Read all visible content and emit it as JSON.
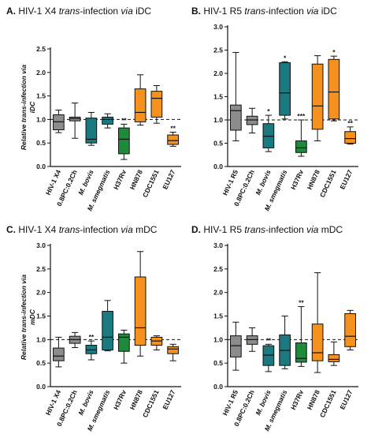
{
  "colors": {
    "gray": "#8c8c8c",
    "teal": "#1a7a80",
    "green": "#1e8a3c",
    "orange": "#f5911e",
    "axis": "#111111"
  },
  "chart_data": [
    {
      "type": "box",
      "panel": "A",
      "title_parts": [
        {
          "t": "A.",
          "s": "b"
        },
        {
          "t": " HIV-1 X4 ",
          "s": ""
        },
        {
          "t": "trans",
          "s": "i"
        },
        {
          "t": "-infection ",
          "s": ""
        },
        {
          "t": "via",
          "s": "i"
        },
        {
          "t": " iDC",
          "s": ""
        }
      ],
      "ylabel": [
        "Relative trans-infection via",
        "iDC"
      ],
      "ylim": [
        0,
        2.5
      ],
      "yticks": [
        "0.0",
        "0.5",
        "1.0",
        "1.5",
        "2.0",
        "2.5"
      ],
      "reference_line": 1.0,
      "categories": [
        "HIV-1 X4",
        "0.8PC:0.2Ch",
        "M. bovis",
        "M. smegmatis",
        "H37Rv",
        "HN878",
        "CDC1551",
        "EU127"
      ],
      "italic_categories": [
        false,
        false,
        true,
        true,
        false,
        false,
        false,
        false
      ],
      "colors": [
        "gray",
        "gray",
        "teal",
        "teal",
        "green",
        "orange",
        "orange",
        "orange"
      ],
      "boxes": [
        {
          "min": 0.72,
          "q1": 0.78,
          "median": 0.95,
          "q3": 1.1,
          "max": 1.2
        },
        {
          "min": 0.6,
          "q1": 0.97,
          "median": 1.02,
          "q3": 1.05,
          "max": 1.35
        },
        {
          "min": 0.45,
          "q1": 0.5,
          "median": 0.58,
          "q3": 1.03,
          "max": 1.15
        },
        {
          "min": 0.82,
          "q1": 0.9,
          "median": 1.0,
          "q3": 1.05,
          "max": 1.12
        },
        {
          "min": 0.15,
          "q1": 0.27,
          "median": 0.58,
          "q3": 0.82,
          "max": 0.9
        },
        {
          "min": 0.88,
          "q1": 0.95,
          "median": 1.15,
          "q3": 1.65,
          "max": 1.95
        },
        {
          "min": 0.92,
          "q1": 1.05,
          "median": 1.45,
          "q3": 1.6,
          "max": 1.72
        },
        {
          "min": 0.43,
          "q1": 0.47,
          "median": 0.55,
          "q3": 0.67,
          "max": 0.73
        }
      ],
      "significance": [
        "",
        "",
        "",
        "",
        "**",
        "",
        "",
        "**"
      ]
    },
    {
      "type": "box",
      "panel": "B",
      "title_parts": [
        {
          "t": "B.",
          "s": "b"
        },
        {
          "t": " HIV-1 R5 ",
          "s": ""
        },
        {
          "t": "trans",
          "s": "i"
        },
        {
          "t": "-infection ",
          "s": ""
        },
        {
          "t": "via",
          "s": "i"
        },
        {
          "t": " iDC",
          "s": ""
        }
      ],
      "ylabel": [],
      "ylim": [
        0,
        3.0
      ],
      "yticks": [
        "0.0",
        "0.5",
        "1.0",
        "1.5",
        "2.0",
        "2.5",
        "3.0"
      ],
      "reference_line": 1.0,
      "categories": [
        "HIV-1 R5",
        "0.8PC:0.2Ch",
        "M. bovis",
        "M. smegmatis",
        "H37Rv",
        "HN878",
        "CDC1551",
        "EU127"
      ],
      "italic_categories": [
        false,
        false,
        true,
        true,
        false,
        false,
        false,
        false
      ],
      "colors": [
        "gray",
        "gray",
        "teal",
        "teal",
        "green",
        "orange",
        "orange",
        "orange"
      ],
      "boxes": [
        {
          "min": 0.55,
          "q1": 0.78,
          "median": 1.2,
          "q3": 1.32,
          "max": 2.45
        },
        {
          "min": 0.72,
          "q1": 0.9,
          "median": 1.0,
          "q3": 1.08,
          "max": 1.25
        },
        {
          "min": 0.32,
          "q1": 0.4,
          "median": 0.65,
          "q3": 0.92,
          "max": 1.1
        },
        {
          "min": 1.02,
          "q1": 1.1,
          "median": 1.58,
          "q3": 2.23,
          "max": 2.25
        },
        {
          "min": 0.22,
          "q1": 0.3,
          "median": 0.4,
          "q3": 0.55,
          "max": 1.0
        },
        {
          "min": 0.55,
          "q1": 0.8,
          "median": 1.3,
          "q3": 2.2,
          "max": 2.38
        },
        {
          "min": 0.98,
          "q1": 1.02,
          "median": 1.6,
          "q3": 2.3,
          "max": 2.37
        },
        {
          "min": 0.48,
          "q1": 0.5,
          "median": 0.6,
          "q3": 0.75,
          "max": 0.85
        }
      ],
      "significance": [
        "",
        "",
        "*",
        "*",
        "***",
        "",
        "*",
        "**"
      ]
    },
    {
      "type": "box",
      "panel": "C",
      "title_parts": [
        {
          "t": "C.",
          "s": "b"
        },
        {
          "t": " HIV-1 X4 ",
          "s": ""
        },
        {
          "t": "trans",
          "s": "i"
        },
        {
          "t": "-infection ",
          "s": ""
        },
        {
          "t": "via",
          "s": "i"
        },
        {
          "t": " mDC",
          "s": ""
        }
      ],
      "ylabel": [
        "Relative trans-infection via",
        "mDC"
      ],
      "ylim": [
        0,
        3.0
      ],
      "yticks": [
        "0.0",
        "0.5",
        "1.0",
        "1.5",
        "2.0",
        "2.5",
        "3.0"
      ],
      "reference_line": 1.0,
      "categories": [
        "HIV-1 X4",
        "0.8PC:0.2Ch",
        "M. bovis",
        "M. smegmatis",
        "H37Rv",
        "HN878",
        "CDC1551",
        "EU127"
      ],
      "italic_categories": [
        false,
        false,
        true,
        true,
        false,
        false,
        false,
        false
      ],
      "colors": [
        "gray",
        "gray",
        "teal",
        "teal",
        "green",
        "orange",
        "orange",
        "orange"
      ],
      "boxes": [
        {
          "min": 0.42,
          "q1": 0.55,
          "median": 0.65,
          "q3": 0.82,
          "max": 1.05
        },
        {
          "min": 0.83,
          "q1": 0.92,
          "median": 1.0,
          "q3": 1.07,
          "max": 1.15
        },
        {
          "min": 0.57,
          "q1": 0.7,
          "median": 0.78,
          "q3": 0.88,
          "max": 0.97
        },
        {
          "min": 0.76,
          "q1": 0.78,
          "median": 1.05,
          "q3": 1.6,
          "max": 1.83
        },
        {
          "min": 0.5,
          "q1": 0.75,
          "median": 1.05,
          "q3": 1.12,
          "max": 1.2
        },
        {
          "min": 0.65,
          "q1": 0.88,
          "median": 1.25,
          "q3": 2.33,
          "max": 2.87
        },
        {
          "min": 0.78,
          "q1": 0.88,
          "median": 0.97,
          "q3": 1.05,
          "max": 1.08
        },
        {
          "min": 0.55,
          "q1": 0.7,
          "median": 0.8,
          "q3": 0.85,
          "max": 0.9
        }
      ],
      "significance": [
        "",
        "",
        "**",
        "",
        "",
        "",
        "",
        ""
      ]
    },
    {
      "type": "box",
      "panel": "D",
      "title_parts": [
        {
          "t": "D.",
          "s": "b"
        },
        {
          "t": " HIV-1 R5 ",
          "s": ""
        },
        {
          "t": "trans",
          "s": "i"
        },
        {
          "t": "-infection ",
          "s": ""
        },
        {
          "t": "via",
          "s": "i"
        },
        {
          "t": " mDC",
          "s": ""
        }
      ],
      "ylabel": [],
      "ylim": [
        0,
        3.0
      ],
      "yticks": [
        "0.0",
        "0.5",
        "1.0",
        "1.5",
        "2.0",
        "2.5",
        "3.0"
      ],
      "reference_line": 1.0,
      "categories": [
        "HIV-1 R5",
        "0.8PC:0.2Ch",
        "M. bovis",
        "M. smegmatis",
        "H37Rv",
        "HN878",
        "CDC1551",
        "EU127"
      ],
      "italic_categories": [
        false,
        false,
        true,
        true,
        false,
        false,
        false,
        false
      ],
      "colors": [
        "gray",
        "gray",
        "teal",
        "teal",
        "green",
        "orange",
        "orange",
        "orange"
      ],
      "boxes": [
        {
          "min": 0.35,
          "q1": 0.63,
          "median": 0.87,
          "q3": 1.08,
          "max": 1.37
        },
        {
          "min": 0.75,
          "q1": 0.9,
          "median": 1.0,
          "q3": 1.08,
          "max": 1.25
        },
        {
          "min": 0.32,
          "q1": 0.45,
          "median": 0.67,
          "q3": 0.87,
          "max": 0.9
        },
        {
          "min": 0.38,
          "q1": 0.45,
          "median": 0.77,
          "q3": 1.1,
          "max": 1.5
        },
        {
          "min": 0.43,
          "q1": 0.52,
          "median": 0.6,
          "q3": 0.93,
          "max": 1.7
        },
        {
          "min": 0.3,
          "q1": 0.55,
          "median": 0.72,
          "q3": 1.33,
          "max": 2.42
        },
        {
          "min": 0.45,
          "q1": 0.53,
          "median": 0.58,
          "q3": 0.68,
          "max": 0.95
        },
        {
          "min": 0.78,
          "q1": 0.85,
          "median": 1.07,
          "q3": 1.55,
          "max": 1.62
        }
      ],
      "significance": [
        "",
        "",
        "**",
        "",
        "**",
        "",
        "",
        ""
      ]
    }
  ]
}
